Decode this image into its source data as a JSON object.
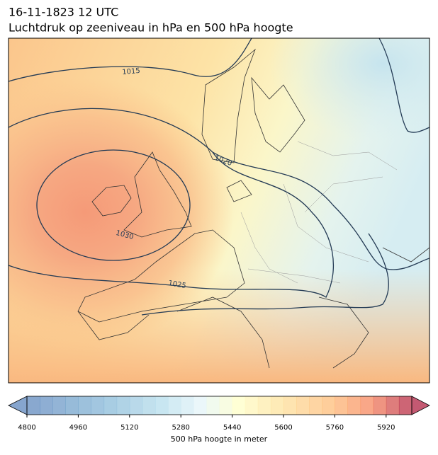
{
  "header": {
    "date": "16-11-1823 12 UTC",
    "title": "Luchtdruk op zeeniveau in hPa en 500 hPa hoogte"
  },
  "isobars": [
    {
      "label": "1015"
    },
    {
      "label": "1020"
    },
    {
      "label": "1025"
    },
    {
      "label": "1030"
    }
  ],
  "colorbar": {
    "range": [
      4800,
      6000
    ],
    "step": 40,
    "ticks": [
      4800,
      4960,
      5120,
      5280,
      5440,
      5600,
      5760,
      5920
    ],
    "label": "500 hPa hoogte in meter"
  }
}
